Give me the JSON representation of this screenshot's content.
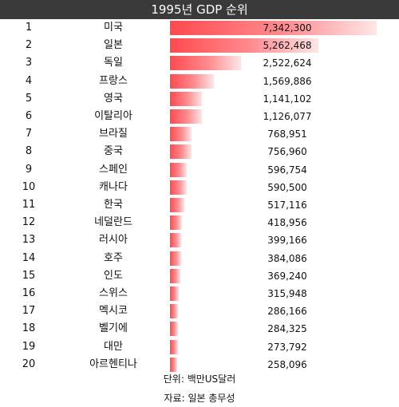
{
  "chart_data": {
    "type": "bar",
    "orientation": "horizontal",
    "title": "1995년 GDP 순위",
    "unit_note": "단위: 백만US달러",
    "source_note": "자료: 일본 총무성",
    "ranks": [
      "1",
      "2",
      "3",
      "4",
      "5",
      "6",
      "7",
      "8",
      "9",
      "10",
      "11",
      "12",
      "13",
      "14",
      "15",
      "16",
      "17",
      "18",
      "19",
      "20"
    ],
    "categories": [
      "미국",
      "일본",
      "독일",
      "프랑스",
      "영국",
      "이탈리아",
      "브라질",
      "중국",
      "스페인",
      "캐나다",
      "한국",
      "네덜란드",
      "러시아",
      "호주",
      "인도",
      "스위스",
      "멕시코",
      "벨기에",
      "대만",
      "아르헨티나"
    ],
    "values": [
      7342300,
      5262468,
      2522624,
      1569886,
      1141102,
      1126077,
      768951,
      756960,
      596754,
      590500,
      517116,
      418956,
      399166,
      384086,
      369240,
      315948,
      286166,
      284325,
      273792,
      258096
    ],
    "value_labels": [
      "7,342,300",
      "5,262,468",
      "2,522,624",
      "1,569,886",
      "1,141,102",
      "1,126,077",
      "768,951",
      "756,960",
      "596,754",
      "590,500",
      "517,116",
      "418,956",
      "399,166",
      "384,086",
      "369,240",
      "315,948",
      "286,166",
      "284,325",
      "273,792",
      "258,096"
    ],
    "xlim": [
      0,
      7342300
    ],
    "bar_color": "#ff4a4f",
    "header_color": "#3a3a3a"
  }
}
